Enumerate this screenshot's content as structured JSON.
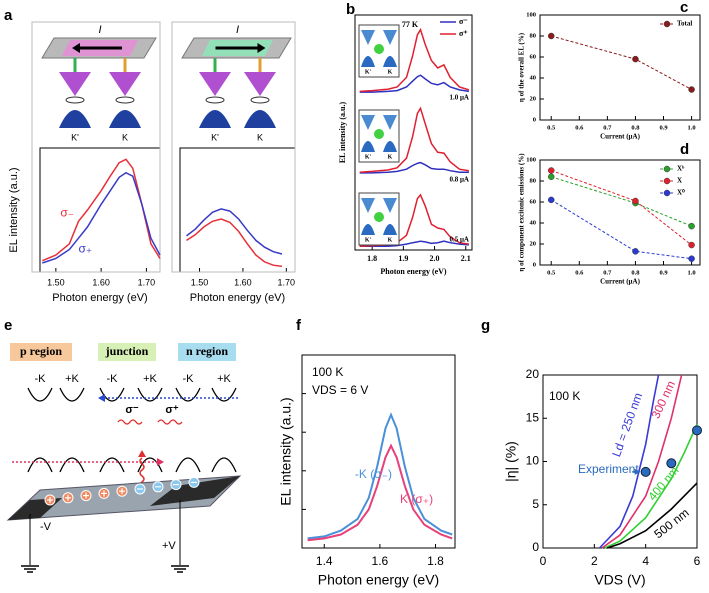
{
  "chart_data": [
    {
      "type": "line",
      "panel": "a",
      "xlabel": "Photon energy (eV)",
      "ylabel": "EL intensity (a.u.)",
      "xlim": [
        1.465,
        1.73
      ],
      "xticks": [
        {
          "value": 1.5,
          "label": "1.50"
        },
        {
          "value": 1.6,
          "label": "1.60"
        },
        {
          "value": 1.7,
          "label": "1.70"
        }
      ],
      "ylim": [
        0,
        1.1
      ],
      "x": [
        1.47,
        1.5,
        1.53,
        1.55,
        1.57,
        1.6,
        1.62,
        1.64,
        1.655,
        1.67,
        1.69,
        1.71,
        1.73
      ],
      "series": [
        {
          "name": "σ₋",
          "color": "#e8303a",
          "values": [
            0.1,
            0.15,
            0.25,
            0.45,
            0.55,
            0.72,
            0.85,
            0.97,
            1.0,
            0.92,
            0.6,
            0.25,
            0.12
          ]
        },
        {
          "name": "σ₊",
          "color": "#3a3ac8",
          "values": [
            0.08,
            0.12,
            0.2,
            0.3,
            0.4,
            0.6,
            0.72,
            0.84,
            0.88,
            0.85,
            0.6,
            0.3,
            0.15
          ]
        }
      ],
      "annotations": [
        "I",
        "K'",
        "K"
      ]
    },
    {
      "type": "line",
      "xlabel": "Photon energy (eV)",
      "xlim": [
        1.455,
        1.72
      ],
      "xticks": [
        {
          "value": 1.5,
          "label": "1.50"
        },
        {
          "value": 1.6,
          "label": "1.60"
        },
        {
          "value": 1.7,
          "label": "1.70"
        }
      ],
      "ylim": [
        0,
        1.1
      ],
      "x": [
        1.47,
        1.49,
        1.51,
        1.53,
        1.55,
        1.57,
        1.59,
        1.61,
        1.63,
        1.65,
        1.67,
        1.69
      ],
      "series": [
        {
          "color": "#3a3ac8",
          "values": [
            0.32,
            0.38,
            0.46,
            0.53,
            0.56,
            0.54,
            0.47,
            0.37,
            0.28,
            0.22,
            0.18,
            0.16
          ]
        },
        {
          "color": "#e8303a",
          "values": [
            0.28,
            0.33,
            0.4,
            0.45,
            0.47,
            0.44,
            0.36,
            0.25,
            0.15,
            0.09,
            0.06,
            0.05
          ]
        }
      ],
      "annotations": [
        "I",
        "K'",
        "K"
      ]
    },
    {
      "type": "waterfall",
      "panel": "b",
      "title": "77 K",
      "xlabel": "Photon energy (eV)",
      "ylabel": "EL intensity (a.u.)",
      "xlim": [
        1.745,
        2.12
      ],
      "xticks": [
        1.8,
        1.9,
        {
          "value": 2.0,
          "label": "2.0"
        },
        2.1
      ],
      "ylim": [
        0,
        3.2
      ],
      "x": [
        1.76,
        1.8,
        1.85,
        1.88,
        1.91,
        1.93,
        1.945,
        1.955,
        1.97,
        1.99,
        2.01,
        2.03,
        2.05,
        2.08,
        2.11
      ],
      "legend": [
        {
          "name": "σ⁻",
          "color": "#3030c0"
        },
        {
          "name": "σ⁺",
          "color": "#e02030"
        }
      ],
      "groups": [
        {
          "label": "1.0 μA",
          "inset": [
            "K'",
            "K"
          ],
          "series": [
            {
              "values": [
                2.15,
                2.15,
                2.16,
                2.17,
                2.22,
                2.3,
                2.36,
                2.38,
                2.33,
                2.27,
                2.25,
                2.28,
                2.22,
                2.18,
                2.16
              ]
            },
            {
              "values": [
                2.16,
                2.17,
                2.19,
                2.22,
                2.35,
                2.65,
                2.93,
                3.0,
                2.8,
                2.58,
                2.48,
                2.52,
                2.35,
                2.22,
                2.18
              ]
            }
          ]
        },
        {
          "label": "0.8 μA",
          "inset": [
            "K'",
            "K"
          ],
          "series": [
            {
              "values": [
                1.05,
                1.05,
                1.06,
                1.07,
                1.1,
                1.15,
                1.18,
                1.19,
                1.16,
                1.11,
                1.1,
                1.1,
                1.08,
                1.06,
                1.06
              ]
            },
            {
              "values": [
                1.06,
                1.07,
                1.09,
                1.12,
                1.25,
                1.55,
                1.86,
                1.93,
                1.72,
                1.45,
                1.33,
                1.32,
                1.2,
                1.1,
                1.08
              ]
            }
          ]
        },
        {
          "label": "0.5 μA",
          "inset": [
            "K'",
            "K"
          ],
          "series": [
            {
              "values": [
                0.05,
                0.05,
                0.05,
                0.06,
                0.08,
                0.1,
                0.11,
                0.12,
                0.11,
                0.09,
                0.1,
                0.12,
                0.1,
                0.08,
                0.07
              ]
            },
            {
              "values": [
                0.05,
                0.06,
                0.07,
                0.1,
                0.2,
                0.45,
                0.7,
                0.75,
                0.6,
                0.35,
                0.3,
                0.28,
                0.18,
                0.1,
                0.08
              ]
            }
          ]
        }
      ]
    },
    {
      "type": "line",
      "panel": "c",
      "xlabel": "Current (μA)",
      "ylabel": "η of the overall EL (%)",
      "xlim": [
        0.46,
        1.03
      ],
      "xticks": [
        0.5,
        0.6,
        0.7,
        0.8,
        0.9,
        {
          "value": 1.0,
          "label": "1.0"
        }
      ],
      "ylim": [
        0,
        100
      ],
      "yticks": [
        0,
        20,
        40,
        60,
        80,
        100
      ],
      "markers": true,
      "dashed": true,
      "x": [
        0.5,
        0.8,
        1.0
      ],
      "series": [
        {
          "name": "Total",
          "color": "#8b1a1a",
          "values": [
            80,
            58,
            29
          ]
        }
      ]
    },
    {
      "type": "line",
      "panel": "d",
      "xlabel": "Current (μA)",
      "ylabel": "η of component excitonic emissions (%)",
      "xlim": [
        0.46,
        1.03
      ],
      "xticks": [
        0.5,
        0.6,
        0.7,
        0.8,
        0.9,
        {
          "value": 1.0,
          "label": "1.0"
        }
      ],
      "ylim": [
        0,
        100
      ],
      "yticks": [
        0,
        20,
        40,
        60,
        80,
        100
      ],
      "markers": true,
      "dashed": true,
      "x": [
        0.5,
        0.8,
        1.0
      ],
      "series": [
        {
          "name": "Xᵇ",
          "color": "#2ca02c",
          "values": [
            84,
            59,
            37
          ]
        },
        {
          "name": "X",
          "color": "#e0202a",
          "values": [
            90,
            61,
            19
          ]
        },
        {
          "name": "X⁰",
          "color": "#2a3ad0",
          "values": [
            62,
            13,
            6
          ]
        }
      ]
    },
    {
      "type": "diagram",
      "panel": "e",
      "regions": [
        "p region",
        "junction",
        "n region"
      ],
      "valleys": [
        "-K",
        "+K",
        "-K",
        "+K",
        "-K",
        "+K"
      ],
      "emissions": [
        "σ⁻",
        "σ⁺"
      ],
      "bias": [
        "-V",
        "+V"
      ]
    },
    {
      "type": "line",
      "panel": "f",
      "xlabel": "Photon energy (eV)",
      "ylabel": "EL intensity (a.u.)",
      "xlim": [
        1.32,
        1.87
      ],
      "xticks": [
        1.4,
        1.6,
        1.8
      ],
      "ylim": [
        0,
        1
      ],
      "x": [
        1.34,
        1.4,
        1.46,
        1.52,
        1.56,
        1.59,
        1.62,
        1.64,
        1.66,
        1.69,
        1.72,
        1.76,
        1.82,
        1.86
      ],
      "series": [
        {
          "name": "-K (σ₋)",
          "color": "#4a90d9",
          "values": [
            0.05,
            0.06,
            0.09,
            0.15,
            0.26,
            0.42,
            0.62,
            0.69,
            0.62,
            0.42,
            0.26,
            0.15,
            0.09,
            0.07
          ]
        },
        {
          "name": "K (σ₊)",
          "color": "#e8407a",
          "values": [
            0.04,
            0.05,
            0.07,
            0.12,
            0.2,
            0.32,
            0.47,
            0.53,
            0.47,
            0.32,
            0.2,
            0.12,
            0.07,
            0.05
          ]
        }
      ],
      "annotations": [
        "100 K",
        "VDS = 6 V"
      ]
    },
    {
      "type": "line",
      "panel": "g",
      "xlabel": "VDS (V)",
      "ylabel": "|η| (%)",
      "xlim": [
        0,
        6
      ],
      "xticks": [
        0,
        2,
        4,
        6
      ],
      "ylim": [
        0,
        20
      ],
      "yticks": [
        0,
        5,
        10,
        15,
        20
      ],
      "series": [
        {
          "name": "Ld = 250 nm",
          "color": "#3a3ad8",
          "x": [
            2.2,
            3,
            3.5,
            4,
            4.3,
            4.5
          ],
          "values": [
            0,
            2.5,
            6,
            12,
            17,
            20
          ]
        },
        {
          "name": "300 nm",
          "color": "#e0306a",
          "x": [
            2.3,
            3,
            4,
            4.5,
            5,
            5.4
          ],
          "values": [
            0,
            1.5,
            6,
            10,
            15,
            20
          ]
        },
        {
          "name": "400 nm",
          "color": "#30d030",
          "x": [
            2.4,
            3,
            4,
            5,
            5.5,
            6
          ],
          "values": [
            0,
            0.8,
            3.5,
            8,
            11,
            14.3
          ]
        },
        {
          "name": "500 nm",
          "color": "#000000",
          "x": [
            2.5,
            3,
            4,
            5,
            6
          ],
          "values": [
            0,
            0.5,
            2,
            4.5,
            7.5
          ]
        }
      ],
      "points": {
        "name": "Experiment",
        "color": "#2a6abf",
        "x": [
          4,
          5,
          6
        ],
        "values": [
          8.8,
          9.8,
          13.6
        ]
      },
      "annotations": [
        "100 K"
      ]
    }
  ]
}
